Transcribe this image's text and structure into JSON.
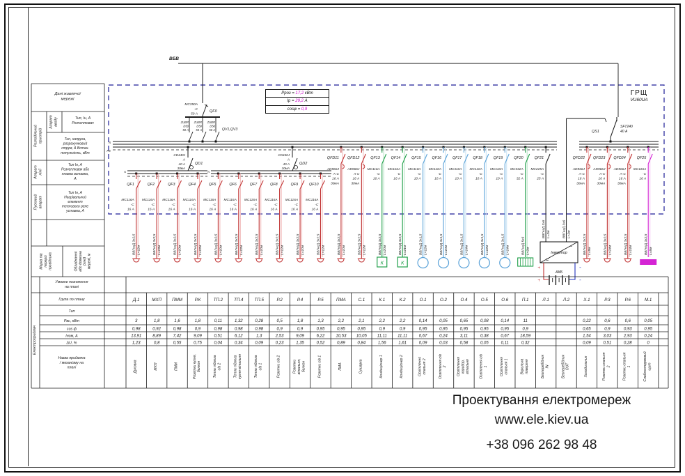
{
  "title_block": {
    "supply": "Дані живлячої мережі",
    "distribution_device": "Розподільчий пристрій",
    "input_device": "Апарат вводу",
    "input_type": "Тип, Ін, А Розчеплювач",
    "distribution_params": "Тип, напруга, розрахунковий струм, А Встан. потужність, кВт",
    "line_device": "Апарат лінії",
    "line_type": "Тип Ін, А Розчеплювач або плавка вставка, А",
    "starter": "Пусковий апарат",
    "starter_type": "Тип Ін, А Нагрівальний елемент теплового реле уставка, А",
    "wire_mark": "Марка та переріз провідника",
    "equipment_or_length": "Обладнання або довжина (лінії) мережі, м",
    "plan_symbol": "Умовне позначення на плані",
    "consumer": "Електроприймач",
    "row_group": "Група по плану",
    "row_type": "Тип",
    "row_power": "Рвс, кВт",
    "row_cos": "cos ф",
    "row_current": "Іном, А",
    "row_du": "ΔU, %",
    "row_name": "Назва приймача / механізму на плані"
  },
  "schematic": {
    "board_name": "ГРЩ",
    "board_type": "VU60UA",
    "incoming": "ВБВ",
    "calc": {
      "p_label": "Рроз = ",
      "p_value": "17,2",
      "p_unit": " кВт",
      "i_label": "Ір = ",
      "i_value": "29,2",
      "i_unit": " А",
      "cos_label": "cosφ = ",
      "cos_value": "0,9"
    },
    "main_breaker": {
      "id": "QF0",
      "lines": [
        "MC350A",
        "-C",
        "50 А"
      ]
    },
    "voltage_relay": {
      "id": "QV1,QV3",
      "lines": [
        "ZUBR",
        "D50",
        "50 А"
      ]
    },
    "group_rcds": [
      {
        "id": "QD1",
        "lines": [
          "CD440J",
          "А",
          "40 А",
          "30мА"
        ]
      },
      {
        "id": "QD2",
        "lines": [
          "CD440J",
          "А",
          "40 А",
          "30мА"
        ]
      }
    ],
    "transfer_switch": {
      "id": "QS1",
      "lines": [
        "SFT240",
        "40 А"
      ]
    },
    "inverter_label": "Інвертор",
    "battery_label": "АКБ",
    "ac_letter": "К",
    "plus": "+",
    "minus": "-",
    "ac_mark": "~",
    "dc_mark": "=",
    "bus_n": "N",
    "bus_pe": "PE",
    "feeders": [
      {
        "id": "QF1",
        "dev": [
          "MC116A",
          "-C",
          "16 А"
        ],
        "color": "red",
        "cable": "ВВГнгД 3х2,5",
        "len": "L=12м",
        "sym": "socket"
      },
      {
        "id": "QF2",
        "dev": [
          "MC116A",
          "-C",
          "16 А"
        ],
        "color": "red",
        "cable": "ВВГнгД 3х2,5",
        "len": "L=13м",
        "sym": "socket"
      },
      {
        "id": "QF3",
        "dev": [
          "MC116A",
          "-C",
          "16 А"
        ],
        "color": "red",
        "cable": "ВВГнгД 3х2,5",
        "len": "L=10м",
        "sym": "socket"
      },
      {
        "id": "QF4",
        "dev": [
          "MC116A",
          "-C",
          "16 А"
        ],
        "color": "red",
        "cable": "ВВГнгД 3х2,5",
        "len": "L=12м",
        "sym": "socket"
      },
      {
        "id": "QF5",
        "dev": [
          "MC116A",
          "-C",
          "16 А"
        ],
        "color": "red",
        "cable": "ВВГнгД 3х2,5",
        "len": "L=10м",
        "sym": "socket"
      },
      {
        "id": "QF6",
        "dev": [
          "MC116A",
          "-C",
          "16 А"
        ],
        "color": "red",
        "cable": "ВВГнгД 3х2,5",
        "len": "L=12м",
        "sym": "socket"
      },
      {
        "id": "QF7",
        "dev": [
          "MC116A",
          "-C",
          "16 А"
        ],
        "color": "red",
        "cable": "ВВГнгД 3х2,5",
        "len": "L=10м",
        "sym": "socket"
      },
      {
        "id": "QF8",
        "dev": [
          "MC116A",
          "-C",
          "16 А"
        ],
        "color": "red",
        "cable": "ВВГнгД 3х2,5",
        "len": "L=12м",
        "sym": "socket"
      },
      {
        "id": "QF9",
        "dev": [
          "MC116A",
          "-C",
          "16 А"
        ],
        "color": "red",
        "cable": "ВВГнгД 3х2,5",
        "len": "L=10м",
        "sym": "socket"
      },
      {
        "id": "QF10",
        "dev": [
          "MC116A",
          "-C",
          "16 А"
        ],
        "color": "red",
        "cable": "ВВГнгД 3х2,5",
        "len": "L=12м",
        "sym": "socket"
      },
      {
        "id": "QFD11",
        "dev": [
          "AD966J",
          "A-C",
          "16 А",
          "30мА"
        ],
        "color": "red",
        "cable": "ВВГнгД 3х2,5",
        "len": "L=10м",
        "sym": "socket"
      },
      {
        "id": "QFD12",
        "dev": [
          "AD966J",
          "A-C",
          "16 А",
          "30мА"
        ],
        "color": "red",
        "cable": "ВВГнгД 3х2,5",
        "len": "L=12м",
        "sym": "socket"
      },
      {
        "id": "QF13",
        "dev": [
          "MC116A",
          "-C",
          "16 А"
        ],
        "color": "green",
        "cable": "ВВГнгД 3х2,5",
        "len": "L=20м",
        "sym": "ac"
      },
      {
        "id": "QF14",
        "dev": [
          "MC116A",
          "-C",
          "16 А"
        ],
        "color": "green",
        "cable": "ВВГнгД 3х2,5",
        "len": "L=21м",
        "sym": "ac"
      },
      {
        "id": "QF15",
        "dev": [
          "MC110A",
          "-C",
          "10 А"
        ],
        "color": "blue",
        "cable": "ВВГнгД 3х1,5",
        "len": "L=12м",
        "sym": "lamp"
      },
      {
        "id": "QF16",
        "dev": [
          "MC110A",
          "-C",
          "10 А"
        ],
        "color": "blue",
        "cable": "ВВГнгД 3х1,5",
        "len": "L=10м",
        "sym": "lamp"
      },
      {
        "id": "QF17",
        "dev": [
          "MC110A",
          "-C",
          "10 А"
        ],
        "color": "blue",
        "cable": "ВВГнгД 3х1,5",
        "len": "L=14м",
        "sym": "lamp"
      },
      {
        "id": "QF18",
        "dev": [
          "MC110A",
          "-C",
          "10 А"
        ],
        "color": "blue",
        "cable": "ВВГнгД 3х1,5",
        "len": "L=12м",
        "sym": "lamp"
      },
      {
        "id": "QF19",
        "dev": [
          "MC110A",
          "-C",
          "10 А"
        ],
        "color": "blue",
        "cable": "ВВГнгД 3х1,5",
        "len": "L=14м",
        "sym": "lamp"
      },
      {
        "id": "QF20",
        "dev": [
          "MC332A",
          "-C",
          "32 А"
        ],
        "color": "green",
        "cable": "ВВГнгД 5х6",
        "len": "L=2м",
        "sym": "cooktop"
      },
      {
        "id": "QF21",
        "dev": [
          "MC225A",
          "-C",
          "25 А"
        ],
        "color": "black",
        "cable": "ВВГнгД 3х6",
        "len": "L=2м",
        "sym": "inv-in"
      },
      {
        "id": "",
        "dev": [],
        "color": "black",
        "cable": "ВВГнгД 3х6",
        "len": "L=2м",
        "sym": "inv-out"
      },
      {
        "id": "QFD22",
        "dev": [
          "AD966J",
          "A-C",
          "16 А",
          "30мА"
        ],
        "color": "red",
        "cable": "ВВГнгД 3х2,5",
        "len": "L=9м",
        "sym": "socket"
      },
      {
        "id": "QFD23",
        "dev": [
          "AD966J",
          "A-C",
          "16 А",
          "30мА"
        ],
        "color": "red",
        "cable": "ВВГнгД 3х2,5",
        "len": "L=24м",
        "sym": "socket"
      },
      {
        "id": "QFD24",
        "dev": [
          "AD966J",
          "A-C",
          "16 А",
          "30мА"
        ],
        "color": "red",
        "cable": "ВВГнгД 3х2,5",
        "len": "L=14м",
        "sym": "socket"
      },
      {
        "id": "QF25",
        "dev": [
          "MC116A",
          "-C",
          "16 А"
        ],
        "color": "magenta",
        "cable": "ВВГнгД 3х2,5",
        "len": "L=8м",
        "sym": "lowcur"
      }
    ]
  },
  "table": {
    "columns": [
      {
        "group": "Д.1",
        "p": "3",
        "cos": "0,98",
        "i": "13,91",
        "du": "1,23",
        "name": "Духовка"
      },
      {
        "group": "МХП",
        "p": "1,8",
        "cos": "0,92",
        "i": "8,89",
        "du": "0,8",
        "name": "МХП"
      },
      {
        "group": "ПММ",
        "p": "1,6",
        "cos": "0,98",
        "i": "7,42",
        "du": "0,55",
        "name": "ПММ"
      },
      {
        "group": "Р.К",
        "p": "1,8",
        "cos": "0,9",
        "i": "9,09",
        "du": "0,75",
        "name": "Розетки кухня, балкон"
      },
      {
        "group": "ТП.2",
        "p": "0,11",
        "cos": "0,98",
        "i": "0,51",
        "du": "0,04",
        "name": "Тепла підлога с/в 2"
      },
      {
        "group": "ТП.4",
        "p": "1,32",
        "cos": "0,98",
        "i": "6,12",
        "du": "0,34",
        "name": "Тепла підлога кухня-вітальня"
      },
      {
        "group": "ТП.5",
        "p": "0,28",
        "cos": "0,98",
        "i": "1,3",
        "du": "0,09",
        "name": "Тепла підлога с/в 1"
      },
      {
        "group": "Р.2",
        "p": "0,5",
        "cos": "0,9",
        "i": "2,53",
        "du": "0,23",
        "name": "Розетки с/в 2"
      },
      {
        "group": "Р.4",
        "p": "1,8",
        "cos": "0,9",
        "i": "9,09",
        "du": "1,35",
        "name": "Розетки вітальня, балкон"
      },
      {
        "group": "Р.5",
        "p": "1,3",
        "cos": "0,95",
        "i": "6,22",
        "du": "0,52",
        "name": "Розетки с/в 1"
      },
      {
        "group": "ПМА",
        "p": "2,2",
        "cos": "0,95",
        "i": "10,53",
        "du": "0,89",
        "name": "ПМА"
      },
      {
        "group": "С.1",
        "p": "2,1",
        "cos": "0,95",
        "i": "10,05",
        "du": "0,84",
        "name": "Сушарка"
      },
      {
        "group": "К.1",
        "p": "2,2",
        "cos": "0,9",
        "i": "11,11",
        "du": "1,56",
        "name": "Кондиціонер 1"
      },
      {
        "group": "К.2",
        "p": "2,2",
        "cos": "0,9",
        "i": "11,11",
        "du": "1,61",
        "name": "Кондиціонер 2"
      },
      {
        "group": "О.1",
        "p": "0,14",
        "cos": "0,95",
        "i": "0,67",
        "du": "0,09",
        "name": "Освітлення спальня 2"
      },
      {
        "group": "О.2",
        "p": "0,05",
        "cos": "0,95",
        "i": "0,24",
        "du": "0,03",
        "name": "Освітлення с/в 2"
      },
      {
        "group": "О.4",
        "p": "0,65",
        "cos": "0,95",
        "i": "3,11",
        "du": "0,58",
        "name": "Освітлення коридор, вітальня"
      },
      {
        "group": "О.5",
        "p": "0,08",
        "cos": "0,95",
        "i": "0,38",
        "du": "0,05",
        "name": "Освітлення с/в 1"
      },
      {
        "group": "О.6",
        "p": "0,14",
        "cos": "0,95",
        "i": "0,67",
        "du": "0,11",
        "name": "Освітлення спальня 1"
      },
      {
        "group": "П.1",
        "p": "11",
        "cos": "0,9",
        "i": "18,59",
        "du": "0,32",
        "name": "Варильна поверхня"
      },
      {
        "group": "Л.1",
        "p": "",
        "cos": "",
        "i": "",
        "du": "",
        "name": "Безперебійник IN"
      },
      {
        "group": "Л.2",
        "p": "",
        "cos": "",
        "i": "",
        "du": "",
        "name": "Безперебійник OUT"
      },
      {
        "group": "Х.1",
        "p": "0,22",
        "cos": "0,65",
        "i": "1,54",
        "du": "0,09",
        "name": "Холодильник"
      },
      {
        "group": "Р.3",
        "p": "0,6",
        "cos": "0,9",
        "i": "3,03",
        "du": "0,51",
        "name": "Розетки спальня 2"
      },
      {
        "group": "Р.6",
        "p": "0,6",
        "cos": "0,93",
        "i": "2,93",
        "du": "0,28",
        "name": "Розетки спальня 1"
      },
      {
        "group": "М.1",
        "p": "0,05",
        "cos": "0,95",
        "i": "0,24",
        "du": "0",
        "name": "Слабкострумовий щит"
      }
    ]
  },
  "footer": {
    "line1": "Проектування електромереж",
    "line2": "www.ele.kiev.ua",
    "line3": "+38 096 262 98 48"
  }
}
